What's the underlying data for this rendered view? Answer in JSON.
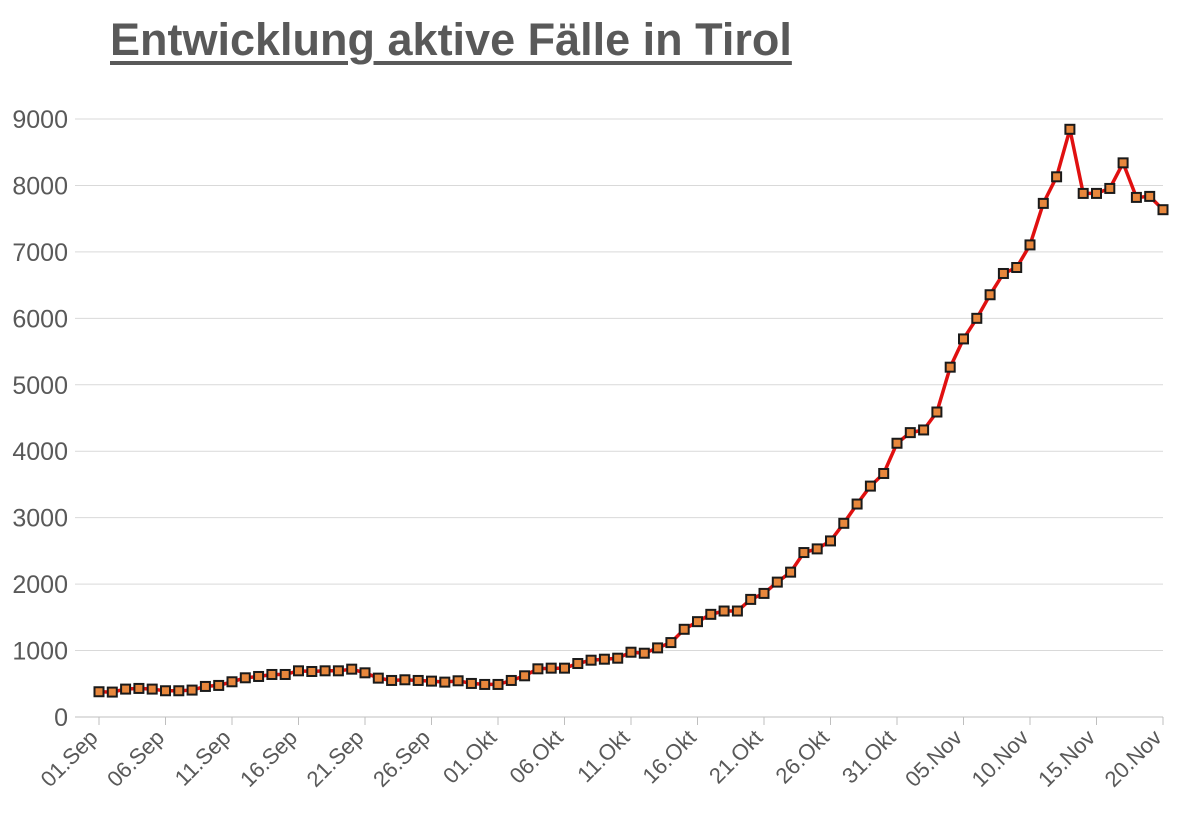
{
  "chart_data": {
    "type": "line",
    "title": "Entwicklung aktive Fälle in Tirol",
    "xlabel": "",
    "ylabel": "",
    "ylim": [
      0,
      9000
    ],
    "yticks": [
      "0",
      "1000",
      "2000",
      "3000",
      "4000",
      "5000",
      "6000",
      "7000",
      "8000",
      "9000"
    ],
    "grid": "horizontal",
    "legend": "none",
    "colors": {
      "line": "#e01010",
      "marker_fill": "#e8873c",
      "marker_edge": "#1a1a1a",
      "grid": "#d9d9d9",
      "text": "#595959"
    },
    "xtick_labels": [
      "01.Sep",
      "06.Sep",
      "11.Sep",
      "16.Sep",
      "21.Sep",
      "26.Sep",
      "01.Okt",
      "06.Okt",
      "11.Okt",
      "16.Okt",
      "21.Okt",
      "26.Okt",
      "31.Okt",
      "05.Nov",
      "10.Nov",
      "15.Nov",
      "20.Nov"
    ],
    "x": [
      "01.Sep",
      "02.Sep",
      "03.Sep",
      "04.Sep",
      "05.Sep",
      "06.Sep",
      "07.Sep",
      "08.Sep",
      "09.Sep",
      "10.Sep",
      "11.Sep",
      "12.Sep",
      "13.Sep",
      "14.Sep",
      "15.Sep",
      "16.Sep",
      "17.Sep",
      "18.Sep",
      "19.Sep",
      "20.Sep",
      "21.Sep",
      "22.Sep",
      "23.Sep",
      "24.Sep",
      "25.Sep",
      "26.Sep",
      "27.Sep",
      "28.Sep",
      "29.Sep",
      "30.Sep",
      "01.Okt",
      "02.Okt",
      "03.Okt",
      "04.Okt",
      "05.Okt",
      "06.Okt",
      "07.Okt",
      "08.Okt",
      "09.Okt",
      "10.Okt",
      "11.Okt",
      "12.Okt",
      "13.Okt",
      "14.Okt",
      "15.Okt",
      "16.Okt",
      "17.Okt",
      "18.Okt",
      "19.Okt",
      "20.Okt",
      "21.Okt",
      "22.Okt",
      "23.Okt",
      "24.Okt",
      "25.Okt",
      "26.Okt",
      "27.Okt",
      "28.Okt",
      "29.Okt",
      "30.Okt",
      "31.Okt",
      "01.Nov",
      "02.Nov",
      "03.Nov",
      "04.Nov",
      "05.Nov",
      "06.Nov",
      "07.Nov",
      "08.Nov",
      "09.Nov",
      "10.Nov",
      "11.Nov",
      "12.Nov",
      "13.Nov",
      "14.Nov",
      "15.Nov",
      "16.Nov",
      "17.Nov",
      "18.Nov",
      "19.Nov",
      "20.Nov"
    ],
    "values": [
      380,
      375,
      420,
      430,
      420,
      395,
      395,
      405,
      460,
      475,
      530,
      590,
      610,
      640,
      640,
      695,
      685,
      695,
      695,
      720,
      665,
      585,
      550,
      560,
      550,
      540,
      525,
      545,
      505,
      490,
      490,
      550,
      620,
      725,
      735,
      735,
      805,
      855,
      870,
      885,
      975,
      960,
      1040,
      1120,
      1320,
      1435,
      1545,
      1595,
      1595,
      1770,
      1860,
      2030,
      2180,
      2475,
      2530,
      2650,
      2915,
      3205,
      3475,
      3665,
      4120,
      4280,
      4320,
      4590,
      5265,
      5690,
      6000,
      6355,
      6675,
      6765,
      7105,
      7730,
      8130,
      8845,
      7880,
      7880,
      7955,
      8340,
      7820,
      7835,
      7635
    ]
  }
}
